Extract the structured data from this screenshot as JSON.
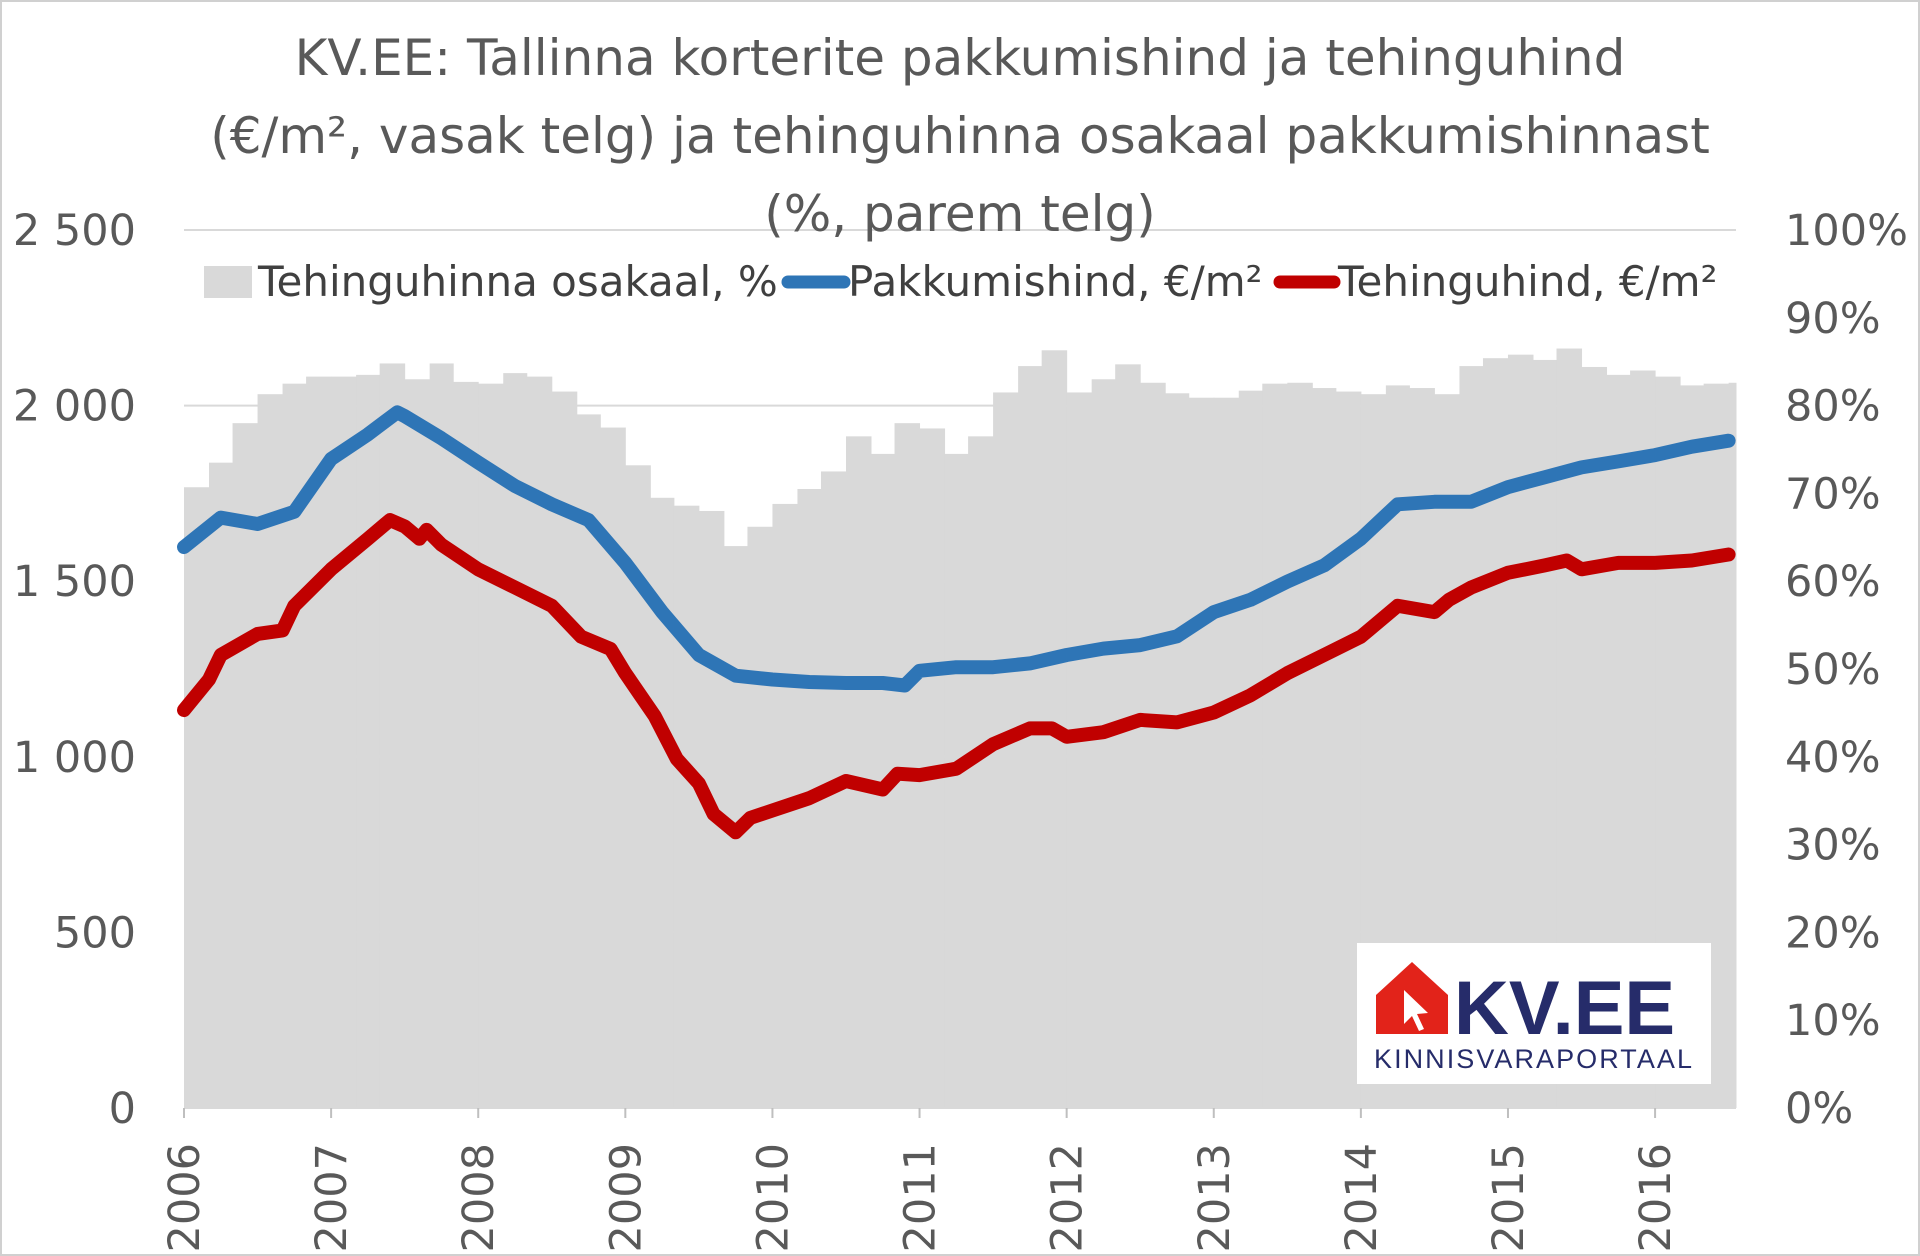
{
  "chart_data": {
    "type": "bar+line",
    "title": [
      "KV.EE: Tallinna korterite pakkumishind ja tehinguhind",
      "(€/m², vasak telg) ja tehinguhinna osakaal pakkumishinnast",
      "(%, parem telg)"
    ],
    "xlim": [
      2006,
      2016.55
    ],
    "ylim_left": [
      0,
      2500
    ],
    "ylim_right": [
      0,
      100
    ],
    "x_ticks": [
      "2006",
      "2007",
      "2008",
      "2009",
      "2010",
      "2011",
      "2012",
      "2013",
      "2014",
      "2015",
      "2016"
    ],
    "y_left_ticks": [
      "0",
      "500",
      "1 000",
      "1 500",
      "2 000",
      "2 500"
    ],
    "y_right_ticks": [
      "0%",
      "10%",
      "20%",
      "30%",
      "40%",
      "50%",
      "60%",
      "70%",
      "80%",
      "90%",
      "100%"
    ],
    "grid": true,
    "legend_position": "top",
    "series": [
      {
        "name": "Tehinguhinna osakaal, %",
        "type": "bar",
        "axis": "right",
        "color": "#d9d9d9",
        "x": [
          2006.0,
          2006.17,
          2006.33,
          2006.5,
          2006.67,
          2006.83,
          2007.0,
          2007.17,
          2007.33,
          2007.5,
          2007.67,
          2007.83,
          2008.0,
          2008.17,
          2008.33,
          2008.5,
          2008.67,
          2008.83,
          2009.0,
          2009.17,
          2009.33,
          2009.5,
          2009.67,
          2009.83,
          2010.0,
          2010.17,
          2010.33,
          2010.5,
          2010.67,
          2010.83,
          2011.0,
          2011.17,
          2011.33,
          2011.5,
          2011.67,
          2011.83,
          2012.0,
          2012.17,
          2012.33,
          2012.5,
          2012.67,
          2012.83,
          2013.0,
          2013.17,
          2013.33,
          2013.5,
          2013.67,
          2013.83,
          2014.0,
          2014.17,
          2014.33,
          2014.5,
          2014.67,
          2014.83,
          2015.0,
          2015.17,
          2015.33,
          2015.5,
          2015.67,
          2015.83,
          2016.0,
          2016.17,
          2016.33,
          2016.5
        ],
        "values": [
          70.7,
          73.5,
          78,
          81.3,
          82.5,
          83.3,
          83.3,
          83.5,
          84.8,
          83,
          84.8,
          82.7,
          82.5,
          83.7,
          83.3,
          81.6,
          79,
          77.5,
          73.2,
          69.5,
          68.6,
          68,
          64,
          66.2,
          68.8,
          70.5,
          72.5,
          76.5,
          74.5,
          78,
          77.4,
          74.5,
          76.5,
          81.5,
          84.5,
          86.3,
          81.5,
          83,
          84.7,
          82.6,
          81.4,
          80.9,
          80.9,
          81.7,
          82.5,
          82.6,
          82,
          81.6,
          81.3,
          82.3,
          82,
          81.3,
          84.5,
          85.4,
          85.8,
          85.2,
          86.5,
          84.4,
          83.5,
          84,
          83.3,
          82.3,
          82.5,
          82.6
        ]
      },
      {
        "name": "Pakkumishind, €/m²",
        "type": "line",
        "axis": "left",
        "color": "#2e75b6",
        "x": [
          2006.0,
          2006.25,
          2006.5,
          2006.75,
          2007.0,
          2007.25,
          2007.45,
          2007.5,
          2007.75,
          2008.0,
          2008.25,
          2008.5,
          2008.75,
          2009.0,
          2009.25,
          2009.5,
          2009.75,
          2010.0,
          2010.25,
          2010.5,
          2010.75,
          2010.9,
          2011.0,
          2011.25,
          2011.5,
          2011.75,
          2012.0,
          2012.25,
          2012.5,
          2012.75,
          2013.0,
          2013.25,
          2013.5,
          2013.75,
          2014.0,
          2014.25,
          2014.5,
          2014.75,
          2015.0,
          2015.25,
          2015.5,
          2015.75,
          2016.0,
          2016.25,
          2016.5
        ],
        "values": [
          1597,
          1681,
          1663,
          1698,
          1848,
          1918,
          1981,
          1970,
          1907,
          1838,
          1771,
          1719,
          1674,
          1552,
          1412,
          1290,
          1231,
          1220,
          1213,
          1210,
          1210,
          1203,
          1245,
          1255,
          1255,
          1266,
          1290,
          1308,
          1318,
          1343,
          1412,
          1447,
          1499,
          1545,
          1621,
          1719,
          1726,
          1726,
          1768,
          1796,
          1824,
          1841,
          1859,
          1883,
          1900
        ]
      },
      {
        "name": "Tehinguhind, €/m²",
        "type": "line",
        "axis": "left",
        "color": "#c00000",
        "x": [
          2006.0,
          2006.17,
          2006.25,
          2006.5,
          2006.67,
          2006.75,
          2007.0,
          2007.25,
          2007.4,
          2007.5,
          2007.6,
          2007.65,
          2007.75,
          2008.0,
          2008.25,
          2008.5,
          2008.7,
          2008.9,
          2009.0,
          2009.2,
          2009.35,
          2009.5,
          2009.6,
          2009.75,
          2009.85,
          2010.0,
          2010.25,
          2010.5,
          2010.75,
          2010.85,
          2011.0,
          2011.25,
          2011.5,
          2011.75,
          2011.9,
          2012.0,
          2012.25,
          2012.5,
          2012.75,
          2013.0,
          2013.25,
          2013.5,
          2013.75,
          2014.0,
          2014.25,
          2014.5,
          2014.6,
          2014.75,
          2015.0,
          2015.25,
          2015.4,
          2015.5,
          2015.75,
          2016.0,
          2016.25,
          2016.5
        ],
        "values": [
          1133,
          1220,
          1290,
          1350,
          1360,
          1430,
          1534,
          1621,
          1674,
          1656,
          1621,
          1646,
          1604,
          1534,
          1482,
          1430,
          1342,
          1307,
          1238,
          1116,
          994,
          924,
          837,
          785,
          826,
          847,
          882,
          931,
          907,
          952,
          948,
          966,
          1036,
          1081,
          1081,
          1057,
          1070,
          1105,
          1098,
          1126,
          1175,
          1238,
          1290,
          1342,
          1430,
          1412,
          1447,
          1482,
          1524,
          1545,
          1559,
          1534,
          1552,
          1552,
          1559,
          1576
        ]
      }
    ]
  },
  "logo": {
    "text": "KV.EE",
    "subtext": "KINNISVARAPORTAAL",
    "red": "#e2231a",
    "navy": "#262c6a"
  }
}
